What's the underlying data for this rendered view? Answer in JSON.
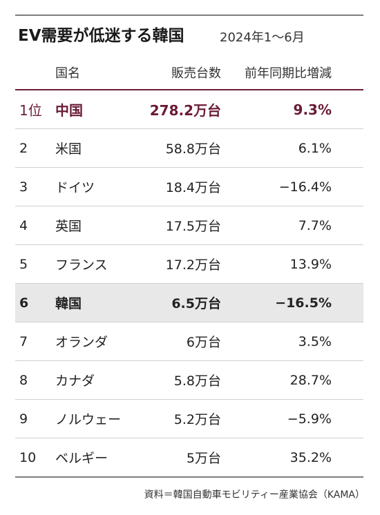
{
  "header": {
    "title": "EV需要が低迷する韓国",
    "subtitle": "2024年1～6月"
  },
  "columns": {
    "rank": "",
    "country": "国名",
    "sales": "販売台数",
    "growth": "前年同期比増減"
  },
  "rows": [
    {
      "rank": "1位",
      "country": "中国",
      "sales": "278.2万台",
      "growth": "9.3%"
    },
    {
      "rank": "2",
      "country": "米国",
      "sales": "58.8万台",
      "growth": "6.1%"
    },
    {
      "rank": "3",
      "country": "ドイツ",
      "sales": "18.4万台",
      "growth": "−16.4%"
    },
    {
      "rank": "4",
      "country": "英国",
      "sales": "17.5万台",
      "growth": "7.7%"
    },
    {
      "rank": "5",
      "country": "フランス",
      "sales": "17.2万台",
      "growth": "13.9%"
    },
    {
      "rank": "6",
      "country": "韓国",
      "sales": "6.5万台",
      "growth": "−16.5%"
    },
    {
      "rank": "7",
      "country": "オランダ",
      "sales": "6万台",
      "growth": "3.5%"
    },
    {
      "rank": "8",
      "country": "カナダ",
      "sales": "5.8万台",
      "growth": "28.7%"
    },
    {
      "rank": "9",
      "country": "ノルウェー",
      "sales": "5.2万台",
      "growth": "−5.9%"
    },
    {
      "rank": "10",
      "country": "ベルギー",
      "sales": "5万台",
      "growth": "35.2%"
    }
  ],
  "source": "資料＝韓国自動車モビリティー産業協会（KAMA）",
  "colors": {
    "accent": "#6a1b34",
    "highlight_bg": "#e8e8e8",
    "rule": "#7d7d7d"
  },
  "chart_data": {
    "type": "table",
    "title": "EV需要が低迷する韓国",
    "subtitle": "2024年1～6月",
    "columns": [
      "国名",
      "販売台数",
      "前年同期比増減"
    ],
    "rows": [
      [
        "中国",
        "278.2万台",
        "9.3%"
      ],
      [
        "米国",
        "58.8万台",
        "6.1%"
      ],
      [
        "ドイツ",
        "18.4万台",
        "−16.4%"
      ],
      [
        "英国",
        "17.5万台",
        "7.7%"
      ],
      [
        "フランス",
        "17.2万台",
        "13.9%"
      ],
      [
        "韓国",
        "6.5万台",
        "−16.5%"
      ],
      [
        "オランダ",
        "6万台",
        "3.5%"
      ],
      [
        "カナダ",
        "5.8万台",
        "28.7%"
      ],
      [
        "ノルウェー",
        "5.2万台",
        "−5.9%"
      ],
      [
        "ベルギー",
        "5万台",
        "35.2%"
      ]
    ],
    "highlighted_rows": [
      "中国",
      "韓国"
    ]
  }
}
